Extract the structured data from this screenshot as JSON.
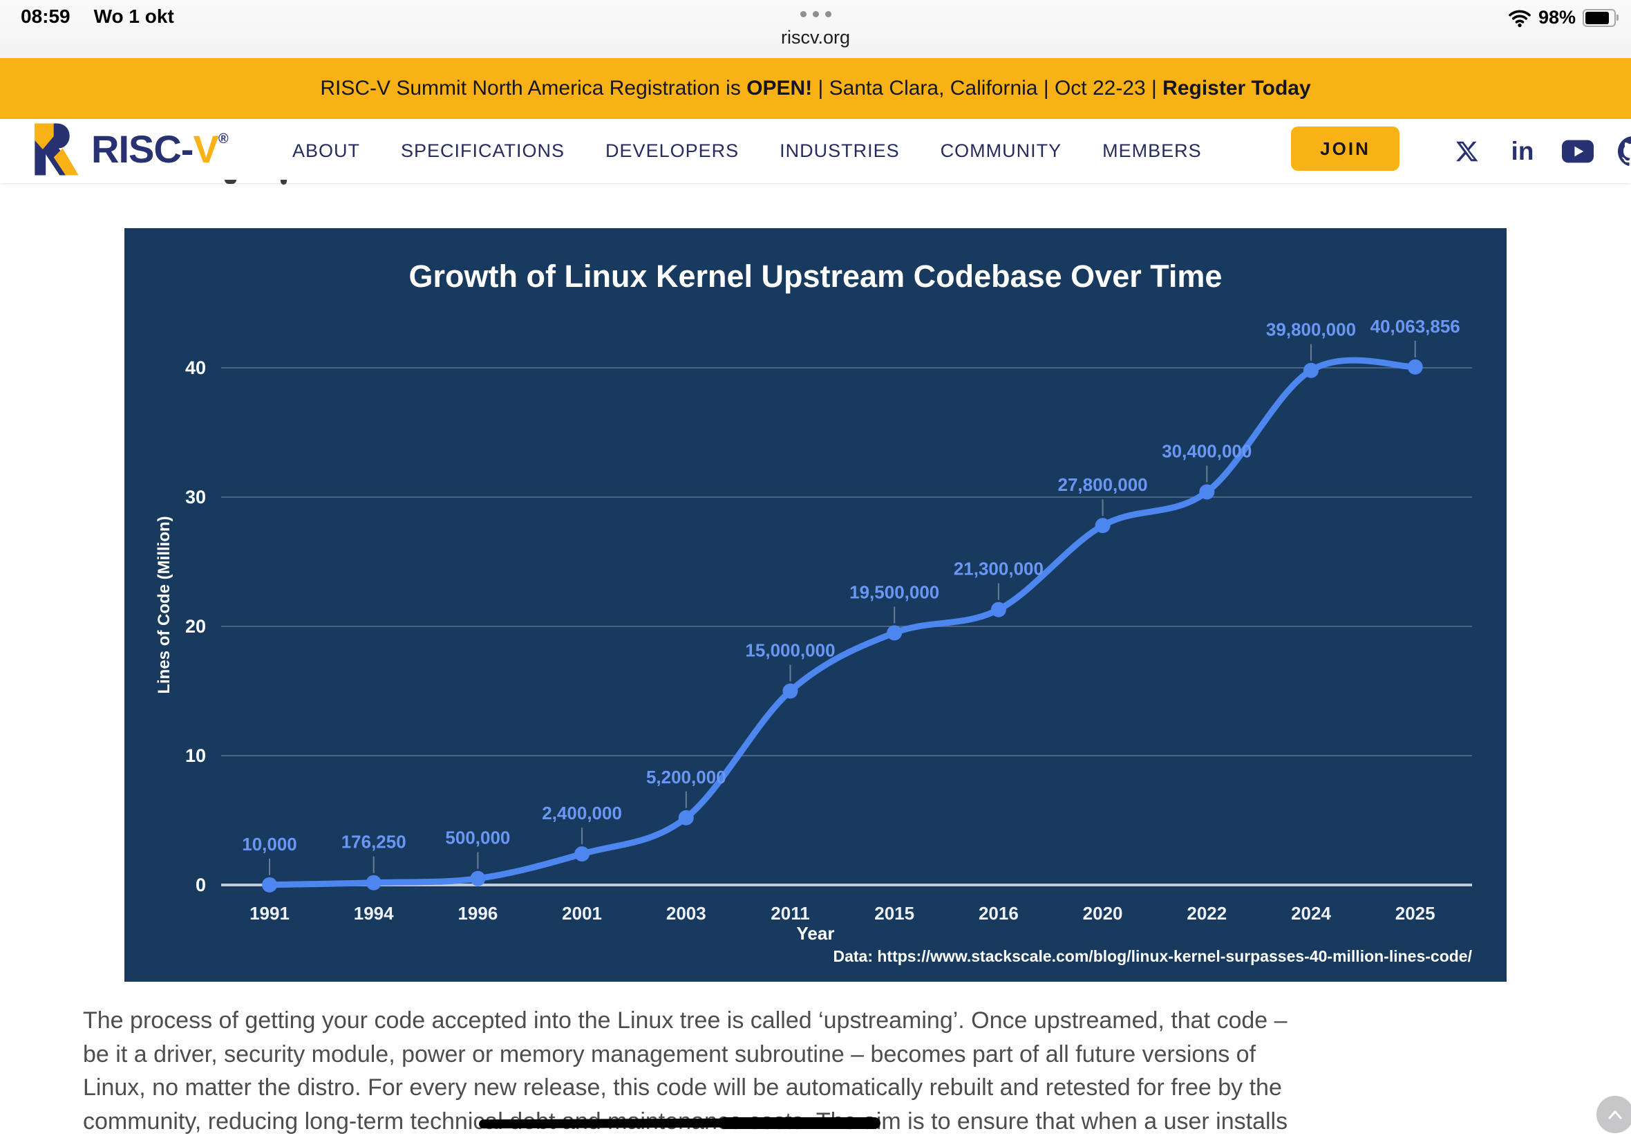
{
  "status": {
    "time": "08:59",
    "date": "Wo 1 okt",
    "url": "riscv.org",
    "battery": "98%"
  },
  "banner": {
    "text_prefix": "RISC-V Summit North America Registration is ",
    "open": "OPEN!",
    "middle": " | Santa Clara, California | Oct 22-23 | ",
    "cta": "Register Today"
  },
  "nav": {
    "logo": {
      "wordmark_primary": "RISC-",
      "wordmark_accent": "V",
      "registered": "®"
    },
    "items": [
      "ABOUT",
      "SPECIFICATIONS",
      "DEVELOPERS",
      "INDUSTRIES",
      "COMMUNITY",
      "MEMBERS"
    ],
    "join_label": "JOIN",
    "linkedin_label": "in",
    "social_icons": [
      "x-icon",
      "linkedin-icon",
      "youtube-icon",
      "github-icon"
    ]
  },
  "chart_data": {
    "type": "line",
    "title": "Growth of Linux Kernel Upstream Codebase Over Time",
    "xlabel": "Year",
    "ylabel": "Lines of Code (Million)",
    "source": "Data: https://www.stackscale.com/blog/linux-kernel-surpasses-40-million-lines-code/",
    "categories": [
      "1991",
      "1994",
      "1996",
      "2001",
      "2003",
      "2011",
      "2015",
      "2016",
      "2020",
      "2022",
      "2024",
      "2025"
    ],
    "values_lines_of_code": [
      10000,
      176250,
      500000,
      2400000,
      5200000,
      15000000,
      19500000,
      21300000,
      27800000,
      30400000,
      39800000,
      40063856
    ],
    "point_labels": [
      "10,000",
      "176,250",
      "500,000",
      "2,400,000",
      "5,200,000",
      "15,000,000",
      "19,500,000",
      "21,300,000",
      "27,800,000",
      "30,400,000",
      "39,800,000",
      "40,063,856"
    ],
    "y_ticks": [
      0,
      10,
      20,
      30,
      40
    ],
    "ylim": [
      0,
      43
    ],
    "grid": true,
    "legend": "none",
    "background_color": "#173a5e",
    "line_color": "#4d86ef",
    "label_color": "#6a97f4"
  },
  "paragraph": {
    "lines": [
      "The process of getting your code accepted into the Linux tree is called ‘upstreaming’. Once upstreamed, that code –",
      "be it a driver, security module, power or memory management subroutine – becomes part of all future versions of",
      "Linux, no matter the distro. For every new release, this code will be automatically rebuilt and retested for free by the"
    ],
    "line4": {
      "pre": "community, reducing long-term technic",
      "struck": "al debt and maintenance costs. The a",
      "post": "im is to ensure that when a user installs"
    }
  },
  "colors": {
    "brand_navy": "#283272",
    "brand_yellow": "#f9b216",
    "chart_bg": "#173a5e",
    "chart_line": "#4d86ef",
    "chart_label": "#6a97f4",
    "body_text": "#4d4d4d"
  }
}
